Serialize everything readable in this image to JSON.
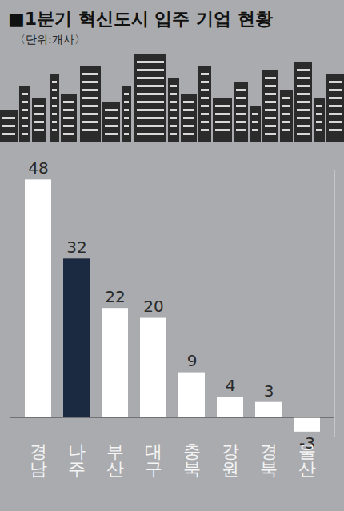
{
  "chart_data": {
    "type": "bar",
    "title": "■1분기 혁신도시 입주 기업 현황",
    "subtitle": "〈단위:개사〉",
    "categories": [
      "경남",
      "나주",
      "부산",
      "대구",
      "충북",
      "강원",
      "경북",
      "울산"
    ],
    "values": [
      48,
      32,
      22,
      20,
      9,
      4,
      3,
      -3
    ],
    "colors": [
      "#ffffff",
      "#1b2a41",
      "#ffffff",
      "#ffffff",
      "#ffffff",
      "#ffffff",
      "#ffffff",
      "#ffffff"
    ],
    "ylim": [
      -4,
      50
    ],
    "data_labels": true,
    "tick_labels": "x",
    "grid": false
  }
}
